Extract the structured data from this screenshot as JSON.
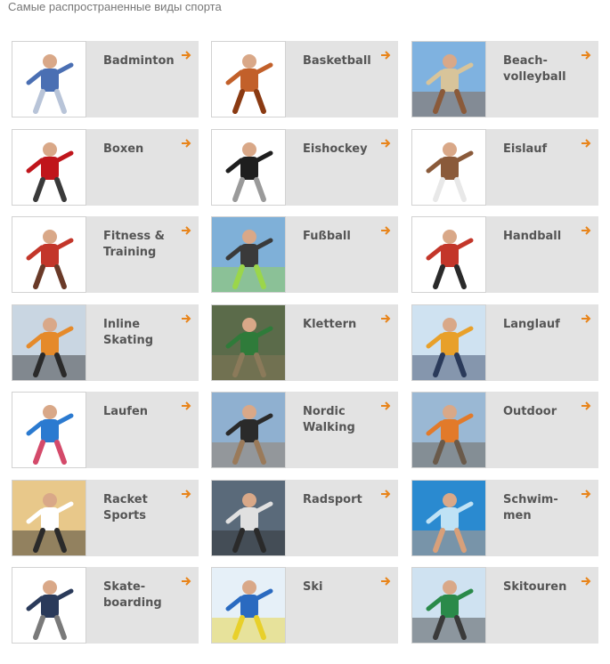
{
  "page_title": "Самые распространенные виды спорта",
  "accent_color": "#e8841a",
  "arrow_icon": "arrow-right-icon",
  "sports": [
    {
      "key": "badminton",
      "label": "Badminton",
      "icon": "badminton-rackets-icon",
      "colors": [
        "#ffffff",
        "#4a6fb3",
        "#b8c4d8"
      ]
    },
    {
      "key": "basketball",
      "label": "Basketball",
      "icon": "basketball-icon",
      "colors": [
        "#ffffff",
        "#c2602a",
        "#8a3a12"
      ]
    },
    {
      "key": "beach-volleyball",
      "label": "Beach-\nvolleyball",
      "icon": "beach-volleyball-icon",
      "colors": [
        "#7fb2e0",
        "#d8c49a",
        "#8a5a3a"
      ]
    },
    {
      "key": "boxen",
      "label": "Boxen",
      "icon": "boxing-gloves-icon",
      "colors": [
        "#ffffff",
        "#c0151b",
        "#3a3a3a"
      ]
    },
    {
      "key": "eishockey",
      "label": "Eishockey",
      "icon": "hockey-skate-icon",
      "colors": [
        "#ffffff",
        "#1e1e1e",
        "#9a9a9a"
      ]
    },
    {
      "key": "eislauf",
      "label": "Eislauf",
      "icon": "ice-skates-icon",
      "colors": [
        "#ffffff",
        "#8a5a3a",
        "#e8e8e8"
      ]
    },
    {
      "key": "fitness-training",
      "label": "Fitness &\nTraining",
      "icon": "fitness-icon",
      "colors": [
        "#ffffff",
        "#c3362a",
        "#6a3a28"
      ]
    },
    {
      "key": "fussball",
      "label": "Fußball",
      "icon": "soccer-icon",
      "colors": [
        "#7fb0d8",
        "#3a3a3a",
        "#9bd64a"
      ]
    },
    {
      "key": "handball",
      "label": "Handball",
      "icon": "handball-icon",
      "colors": [
        "#ffffff",
        "#c3362a",
        "#2a2a2a"
      ]
    },
    {
      "key": "inline-skating",
      "label": "Inline\nSkating",
      "icon": "inline-skate-icon",
      "colors": [
        "#c9d6e2",
        "#e58a2a",
        "#2a2a2a"
      ]
    },
    {
      "key": "klettern",
      "label": "Klettern",
      "icon": "climbing-icon",
      "colors": [
        "#5b6b4a",
        "#2f7b3a",
        "#8b7a5a"
      ]
    },
    {
      "key": "langlauf",
      "label": "Langlauf",
      "icon": "cross-country-ski-icon",
      "colors": [
        "#cfe2f1",
        "#e8a02a",
        "#2a3a5a"
      ]
    },
    {
      "key": "laufen",
      "label": "Laufen",
      "icon": "running-icon",
      "colors": [
        "#ffffff",
        "#2b7ad0",
        "#d44a6a"
      ]
    },
    {
      "key": "nordic-walking",
      "label": "Nordic\nWalking",
      "icon": "nordic-walking-icon",
      "colors": [
        "#8fb0d0",
        "#2a2a2a",
        "#9a7a5a"
      ]
    },
    {
      "key": "outdoor",
      "label": "Outdoor",
      "icon": "hiking-icon",
      "colors": [
        "#9ab8d4",
        "#e27a2a",
        "#6a5a4a"
      ]
    },
    {
      "key": "racket-sports",
      "label": "Racket\nSports",
      "icon": "tennis-icon",
      "colors": [
        "#e8c88a",
        "#ffffff",
        "#2a2a2a"
      ]
    },
    {
      "key": "radsport",
      "label": "Radsport",
      "icon": "cycling-icon",
      "colors": [
        "#5a6a7a",
        "#e0e0e0",
        "#2a2a2a"
      ]
    },
    {
      "key": "schwimmen",
      "label": "Schwim-\nmen",
      "icon": "swimming-icon",
      "colors": [
        "#2a8ad0",
        "#bfe2f5",
        "#d8a07a"
      ]
    },
    {
      "key": "skateboarding",
      "label": "Skate-\nboarding",
      "icon": "skateboard-icon",
      "colors": [
        "#ffffff",
        "#2a3a5a",
        "#7a7a7a"
      ]
    },
    {
      "key": "ski",
      "label": "Ski",
      "icon": "alpine-ski-icon",
      "colors": [
        "#e6f0f8",
        "#2a6ac0",
        "#e8d02a"
      ]
    },
    {
      "key": "skitouren",
      "label": "Skitouren",
      "icon": "ski-touring-icon",
      "colors": [
        "#cfe2f1",
        "#2a8a4a",
        "#3a3a3a"
      ]
    }
  ]
}
